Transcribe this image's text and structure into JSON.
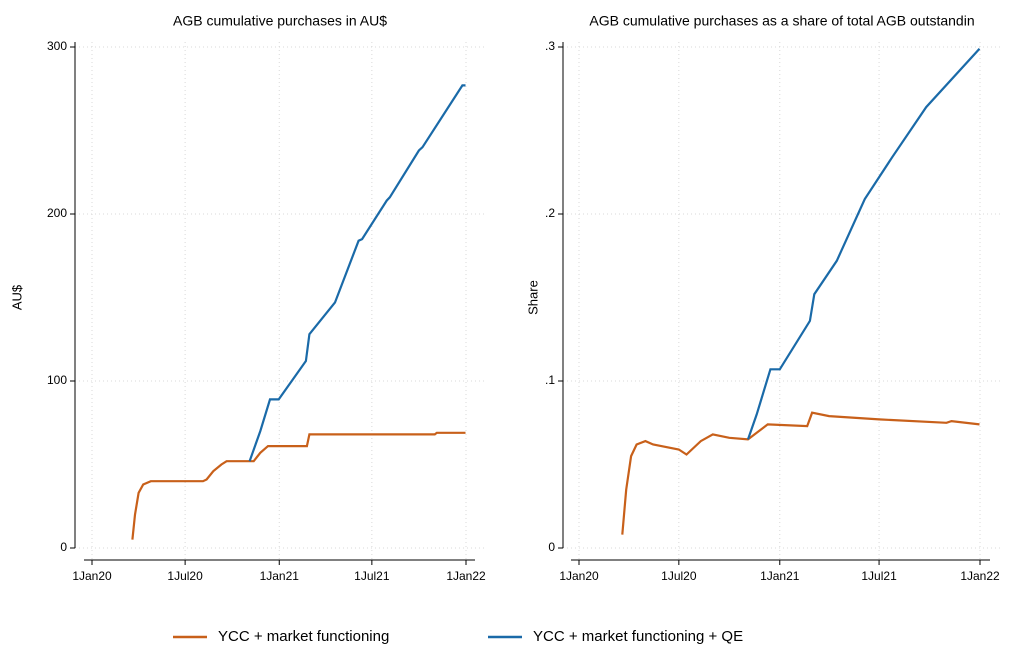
{
  "chart_data": [
    {
      "type": "line",
      "title": "AGB cumulative purchases in AU$",
      "y_label": "AU$",
      "xlim": [
        "2020-01-01",
        "2022-01-01"
      ],
      "ylim": [
        0,
        300
      ],
      "xticks": [
        {
          "value": "2020-01-01",
          "label": "1Jan20"
        },
        {
          "value": "2020-07-01",
          "label": "1Jul20"
        },
        {
          "value": "2021-01-01",
          "label": "1Jan21"
        },
        {
          "value": "2021-07-01",
          "label": "1Jul21"
        },
        {
          "value": "2022-01-01",
          "label": "1Jan22"
        }
      ],
      "yticks": [
        0,
        100,
        200,
        300
      ],
      "grid": true,
      "series": [
        {
          "name": "YCC + market functioning",
          "color": "#c8601a",
          "x": [
            "2020-03-20",
            "2020-03-25",
            "2020-04-01",
            "2020-04-10",
            "2020-04-25",
            "2020-08-05",
            "2020-08-12",
            "2020-08-25",
            "2020-09-10",
            "2020-09-20",
            "2020-11-12",
            "2020-11-25",
            "2020-12-10",
            "2021-02-24",
            "2021-03-01",
            "2021-11-01",
            "2021-11-05",
            "2021-12-31"
          ],
          "values": [
            5,
            20,
            33,
            38,
            40,
            40,
            41,
            46,
            50,
            52,
            52,
            57,
            61,
            61,
            68,
            68,
            69,
            69
          ]
        },
        {
          "name": "YCC + market functioning + QE",
          "color": "#1a6aa8",
          "x": [
            "2020-11-04",
            "2020-11-25",
            "2020-12-14",
            "2020-12-31",
            "2021-02-22",
            "2021-03-01",
            "2021-04-20",
            "2021-06-05",
            "2021-06-12",
            "2021-07-30",
            "2021-08-05",
            "2021-10-01",
            "2021-10-08",
            "2021-12-25",
            "2021-12-31"
          ],
          "values": [
            52,
            70,
            89,
            89,
            112,
            128,
            147,
            184,
            185,
            208,
            210,
            238,
            240,
            277,
            277
          ]
        }
      ]
    },
    {
      "type": "line",
      "title": "AGB cumulative purchases as a share of total AGB outstandin",
      "y_label": "Share",
      "xlim": [
        "2020-01-01",
        "2022-01-01"
      ],
      "ylim": [
        0,
        0.3
      ],
      "xticks": [
        {
          "value": "2020-01-01",
          "label": "1Jan20"
        },
        {
          "value": "2020-07-01",
          "label": "1Jul20"
        },
        {
          "value": "2021-01-01",
          "label": "1Jan21"
        },
        {
          "value": "2021-07-01",
          "label": "1Jul21"
        },
        {
          "value": "2022-01-01",
          "label": "1Jan22"
        }
      ],
      "yticks": [
        0,
        {
          "value": 0.1,
          "label": ".1"
        },
        {
          "value": 0.2,
          "label": ".2"
        },
        {
          "value": 0.3,
          "label": ".3"
        }
      ],
      "grid": true,
      "series": [
        {
          "name": "YCC + market functioning",
          "color": "#c8601a",
          "x": [
            "2020-03-20",
            "2020-03-27",
            "2020-04-05",
            "2020-04-15",
            "2020-05-01",
            "2020-05-15",
            "2020-07-01",
            "2020-07-15",
            "2020-08-10",
            "2020-09-01",
            "2020-10-01",
            "2020-11-04",
            "2020-11-20",
            "2020-12-10",
            "2021-02-20",
            "2021-03-01",
            "2021-04-01",
            "2021-07-01",
            "2021-11-01",
            "2021-11-10",
            "2021-12-31"
          ],
          "values": [
            0.008,
            0.035,
            0.055,
            0.062,
            0.064,
            0.062,
            0.059,
            0.056,
            0.064,
            0.068,
            0.066,
            0.065,
            0.069,
            0.074,
            0.073,
            0.081,
            0.079,
            0.077,
            0.075,
            0.076,
            0.074
          ]
        },
        {
          "name": "YCC + market functioning + QE",
          "color": "#1a6aa8",
          "x": [
            "2020-11-04",
            "2020-11-20",
            "2020-12-15",
            "2021-01-01",
            "2021-02-25",
            "2021-03-05",
            "2021-04-15",
            "2021-06-05",
            "2021-07-25",
            "2021-09-25",
            "2021-12-31"
          ],
          "values": [
            0.065,
            0.08,
            0.107,
            0.107,
            0.136,
            0.152,
            0.172,
            0.209,
            0.234,
            0.264,
            0.299
          ]
        }
      ]
    }
  ]
}
